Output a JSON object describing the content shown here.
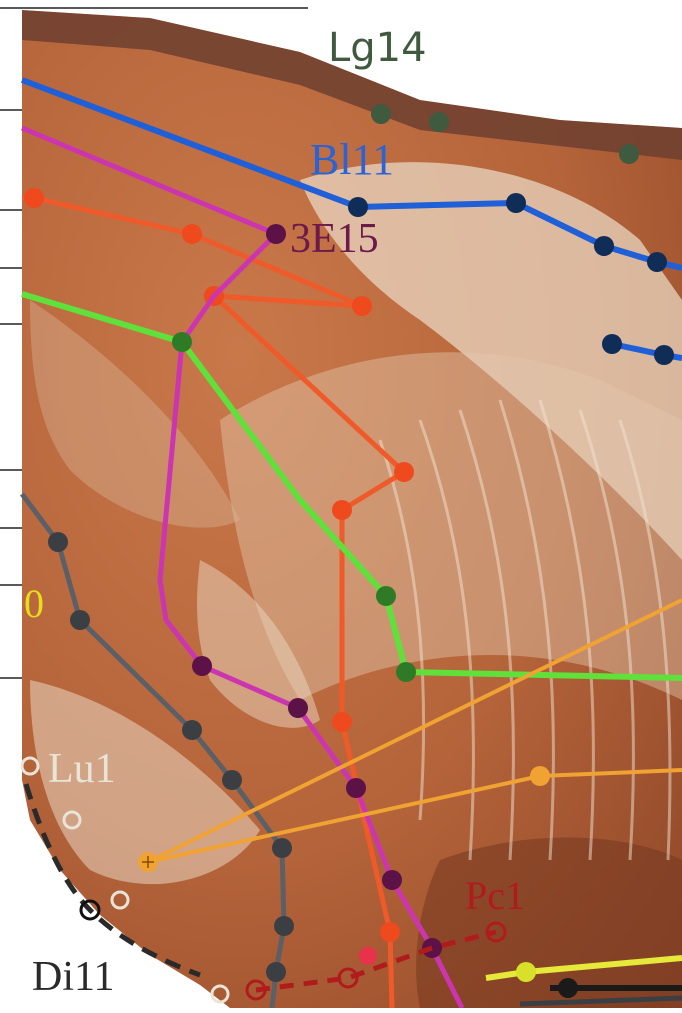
{
  "labels": {
    "lg14": "Lg14",
    "bl11": "Bl11",
    "e315": "3E15",
    "zero": "0",
    "lu1": "Lu1",
    "pc1": "Pc1",
    "di11": "Di11"
  },
  "colors": {
    "tissue": "#b5643a",
    "tissue_light": "#e9d7c2",
    "blue": "#1f5fd8",
    "navy": "#0f2d57",
    "magenta": "#cc35b0",
    "plum": "#5c1247",
    "orange_red": "#ef5a2a",
    "green": "#5fe03a",
    "dark_green": "#2f7a26",
    "gray": "#5c6066",
    "dark_gray": "#3b3f44",
    "amber": "#f0a232",
    "olive_dot": "#3f5a3e",
    "dark_red": "#b01c1c",
    "yellow": "#e6e83a",
    "black": "#1a1a1a"
  }
}
